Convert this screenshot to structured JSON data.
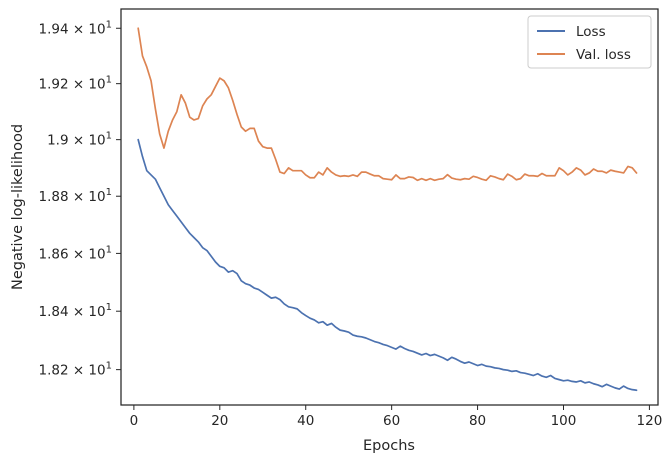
{
  "chart_data": {
    "type": "line",
    "title": "",
    "xlabel": "Epochs",
    "ylabel": "Negative log-likelihood",
    "xlim": [
      -3,
      122
    ],
    "ylim": [
      18.08,
      19.47
    ],
    "yscale": "log",
    "grid": false,
    "legend_position": "top-right",
    "x_ticks": [
      {
        "value": 0,
        "label": "0"
      },
      {
        "value": 20,
        "label": "20"
      },
      {
        "value": 40,
        "label": "40"
      },
      {
        "value": 60,
        "label": "60"
      },
      {
        "value": 80,
        "label": "80"
      },
      {
        "value": 100,
        "label": "100"
      },
      {
        "value": 120,
        "label": "120"
      }
    ],
    "y_ticks": [
      {
        "value": 18.2,
        "mantissa": "1.82"
      },
      {
        "value": 18.4,
        "mantissa": "1.84"
      },
      {
        "value": 18.6,
        "mantissa": "1.86"
      },
      {
        "value": 18.8,
        "mantissa": "1.88"
      },
      {
        "value": 19.0,
        "mantissa": "1.9"
      },
      {
        "value": 19.2,
        "mantissa": "1.92"
      },
      {
        "value": 19.4,
        "mantissa": "1.94"
      }
    ],
    "y_tick_multiplier": "× 10",
    "y_tick_exponent": "1",
    "series": [
      {
        "name": "Loss",
        "color": "#4c72b0",
        "x": [
          1,
          2,
          3,
          4,
          5,
          6,
          7,
          8,
          9,
          10,
          11,
          12,
          13,
          14,
          15,
          16,
          17,
          18,
          19,
          20,
          21,
          22,
          23,
          24,
          25,
          26,
          27,
          28,
          29,
          30,
          31,
          32,
          33,
          34,
          35,
          36,
          37,
          38,
          39,
          40,
          41,
          42,
          43,
          44,
          45,
          46,
          47,
          48,
          49,
          50,
          51,
          52,
          53,
          54,
          55,
          56,
          57,
          58,
          59,
          60,
          61,
          62,
          63,
          64,
          65,
          66,
          67,
          68,
          69,
          70,
          71,
          72,
          73,
          74,
          75,
          76,
          77,
          78,
          79,
          80,
          81,
          82,
          83,
          84,
          85,
          86,
          87,
          88,
          89,
          90,
          91,
          92,
          93,
          94,
          95,
          96,
          97,
          98,
          99,
          100,
          101,
          102,
          103,
          104,
          105,
          106,
          107,
          108,
          109,
          110,
          111,
          112,
          113,
          114,
          115,
          116,
          117
        ],
        "y": [
          19.0,
          18.94,
          18.89,
          18.875,
          18.86,
          18.83,
          18.8,
          18.77,
          18.75,
          18.73,
          18.71,
          18.69,
          18.67,
          18.655,
          18.64,
          18.62,
          18.61,
          18.59,
          18.57,
          18.555,
          18.55,
          18.535,
          18.54,
          18.53,
          18.505,
          18.495,
          18.49,
          18.48,
          18.475,
          18.465,
          18.455,
          18.445,
          18.448,
          18.44,
          18.425,
          18.415,
          18.412,
          18.408,
          18.395,
          18.385,
          18.376,
          18.37,
          18.36,
          18.364,
          18.352,
          18.358,
          18.345,
          18.335,
          18.332,
          18.328,
          18.318,
          18.314,
          18.312,
          18.308,
          18.302,
          18.296,
          18.292,
          18.286,
          18.282,
          18.276,
          18.27,
          18.28,
          18.272,
          18.266,
          18.262,
          18.256,
          18.25,
          18.255,
          18.248,
          18.252,
          18.246,
          18.24,
          18.232,
          18.242,
          18.236,
          18.228,
          18.222,
          18.226,
          18.22,
          18.214,
          18.218,
          18.212,
          18.21,
          18.206,
          18.204,
          18.2,
          18.198,
          18.194,
          18.196,
          18.19,
          18.188,
          18.184,
          18.18,
          18.186,
          18.178,
          18.174,
          18.18,
          18.17,
          18.166,
          18.162,
          18.164,
          18.16,
          18.158,
          18.162,
          18.155,
          18.158,
          18.152,
          18.148,
          18.142,
          18.15,
          18.144,
          18.138,
          18.134,
          18.144,
          18.136,
          18.132,
          18.13
        ]
      },
      {
        "name": "Val. loss",
        "color": "#dd8452",
        "x": [
          1,
          2,
          3,
          4,
          5,
          6,
          7,
          8,
          9,
          10,
          11,
          12,
          13,
          14,
          15,
          16,
          17,
          18,
          19,
          20,
          21,
          22,
          23,
          24,
          25,
          26,
          27,
          28,
          29,
          30,
          31,
          32,
          33,
          34,
          35,
          36,
          37,
          38,
          39,
          40,
          41,
          42,
          43,
          44,
          45,
          46,
          47,
          48,
          49,
          50,
          51,
          52,
          53,
          54,
          55,
          56,
          57,
          58,
          59,
          60,
          61,
          62,
          63,
          64,
          65,
          66,
          67,
          68,
          69,
          70,
          71,
          72,
          73,
          74,
          75,
          76,
          77,
          78,
          79,
          80,
          81,
          82,
          83,
          84,
          85,
          86,
          87,
          88,
          89,
          90,
          91,
          92,
          93,
          94,
          95,
          96,
          97,
          98,
          99,
          100,
          101,
          102,
          103,
          104,
          105,
          106,
          107,
          108,
          109,
          110,
          111,
          112,
          113,
          114,
          115,
          116,
          117
        ],
        "y": [
          19.4,
          19.3,
          19.26,
          19.21,
          19.11,
          19.02,
          18.97,
          19.03,
          19.07,
          19.1,
          19.16,
          19.13,
          19.08,
          19.07,
          19.075,
          19.12,
          19.145,
          19.16,
          19.19,
          19.22,
          19.21,
          19.185,
          19.14,
          19.09,
          19.045,
          19.03,
          19.04,
          19.04,
          18.995,
          18.975,
          18.97,
          18.97,
          18.93,
          18.885,
          18.88,
          18.9,
          18.89,
          18.89,
          18.89,
          18.875,
          18.865,
          18.865,
          18.885,
          18.875,
          18.9,
          18.885,
          18.875,
          18.87,
          18.872,
          18.87,
          18.875,
          18.87,
          18.885,
          18.885,
          18.878,
          18.872,
          18.872,
          18.862,
          18.86,
          18.858,
          18.875,
          18.862,
          18.862,
          18.868,
          18.866,
          18.856,
          18.862,
          18.856,
          18.862,
          18.856,
          18.86,
          18.862,
          18.876,
          18.864,
          18.86,
          18.858,
          18.862,
          18.86,
          18.87,
          18.866,
          18.86,
          18.856,
          18.872,
          18.868,
          18.862,
          18.858,
          18.878,
          18.87,
          18.858,
          18.862,
          18.878,
          18.872,
          18.872,
          18.87,
          18.88,
          18.872,
          18.872,
          18.872,
          18.9,
          18.89,
          18.875,
          18.885,
          18.9,
          18.892,
          18.875,
          18.882,
          18.896,
          18.888,
          18.888,
          18.882,
          18.892,
          18.888,
          18.885,
          18.882,
          18.905,
          18.9,
          18.882
        ]
      }
    ]
  }
}
